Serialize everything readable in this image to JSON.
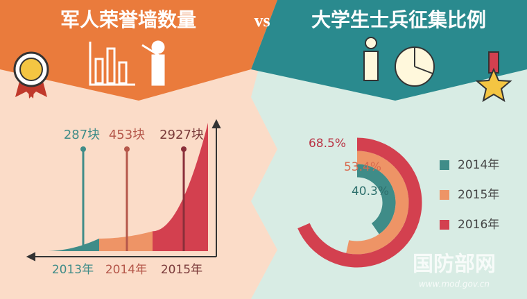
{
  "chart_data": [
    {
      "type": "growth-area",
      "title": "军人荣誉墙数量",
      "categories": [
        "2013年",
        "2014年",
        "2015年"
      ],
      "values": [
        287,
        453,
        2927
      ],
      "value_labels": [
        "287块",
        "453块",
        "2927块"
      ],
      "colors": [
        "#3f8c88",
        "#ee9466",
        "#d3404f"
      ]
    },
    {
      "type": "radial-bar",
      "title": "大学生士兵征集比例",
      "series": [
        {
          "name": "2014年",
          "color": "#3f8c88",
          "values": [
            40.3
          ],
          "value_labels": [
            "40.3%"
          ]
        },
        {
          "name": "2015年",
          "color": "#ee9466",
          "values": [
            53.4
          ],
          "value_labels": [
            "53.4%"
          ]
        },
        {
          "name": "2016年",
          "color": "#d3404f",
          "values": [
            68.5
          ],
          "value_labels": [
            "68.5%"
          ]
        }
      ],
      "ylim": [
        0,
        100
      ]
    }
  ],
  "vs": "vs",
  "watermark": {
    "name": "国防部网",
    "url": "www.mod.gov.cn"
  }
}
